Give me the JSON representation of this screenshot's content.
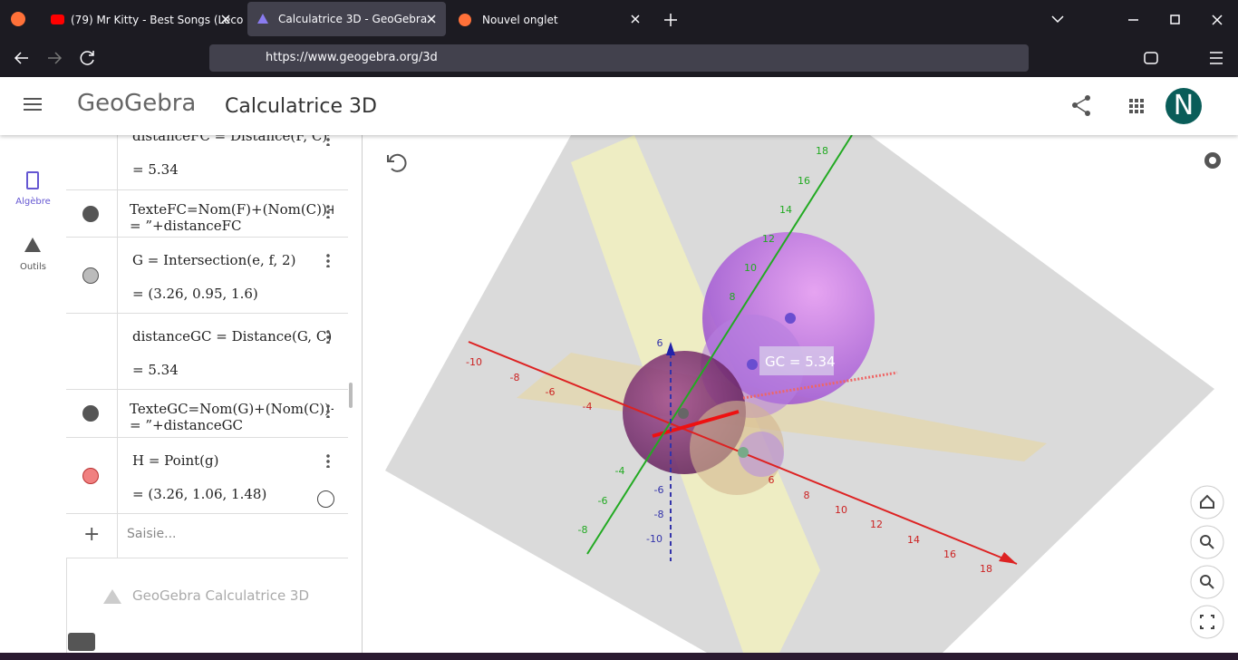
{
  "browser": {
    "tabs": [
      "(79) Mr Kitty - Best Songs (Leco",
      "Calculatrice 3D - GeoGebra",
      "Nouvel onglet"
    ],
    "url": "https://www.geogebra.org/3d"
  },
  "header": {
    "logo": "GeoGebra",
    "title": "Calculatrice 3D",
    "avatar": "N"
  },
  "sidebar": [
    "Algèbre",
    "Outils"
  ],
  "algebra": {
    "rows": [
      {
        "definition": "distanceFC = Distance(F, C)",
        "value": "= 5.34"
      },
      {
        "definition": "TexteFC=Nom(F)+(Nom(C))+",
        "value": "= ”+distanceFC"
      },
      {
        "definition": "G = Intersection(e, f, 2)",
        "value": "= (3.26, 0.95, 1.6)"
      },
      {
        "definition": "distanceGC = Distance(G, C)",
        "value": "= 5.34"
      },
      {
        "definition": "TexteGC=Nom(G)+(Nom(C))+",
        "value": "= ”+distanceGC"
      },
      {
        "definition": "H = Point(g)",
        "value": "= (3.26, 1.06, 1.48)"
      }
    ],
    "input": "Saisie...",
    "footer": "GeoGebra Calculatrice 3D"
  },
  "graphics": {
    "label": "GC = 5.34",
    "x_axis": [
      -10,
      -8,
      -6,
      -4,
      6,
      8,
      10,
      12,
      14,
      16,
      18
    ],
    "y_axis": [
      18,
      16,
      14,
      12,
      10,
      8,
      -4,
      -6,
      -8
    ],
    "z_axis": [
      6,
      -6,
      -8,
      -10
    ]
  }
}
